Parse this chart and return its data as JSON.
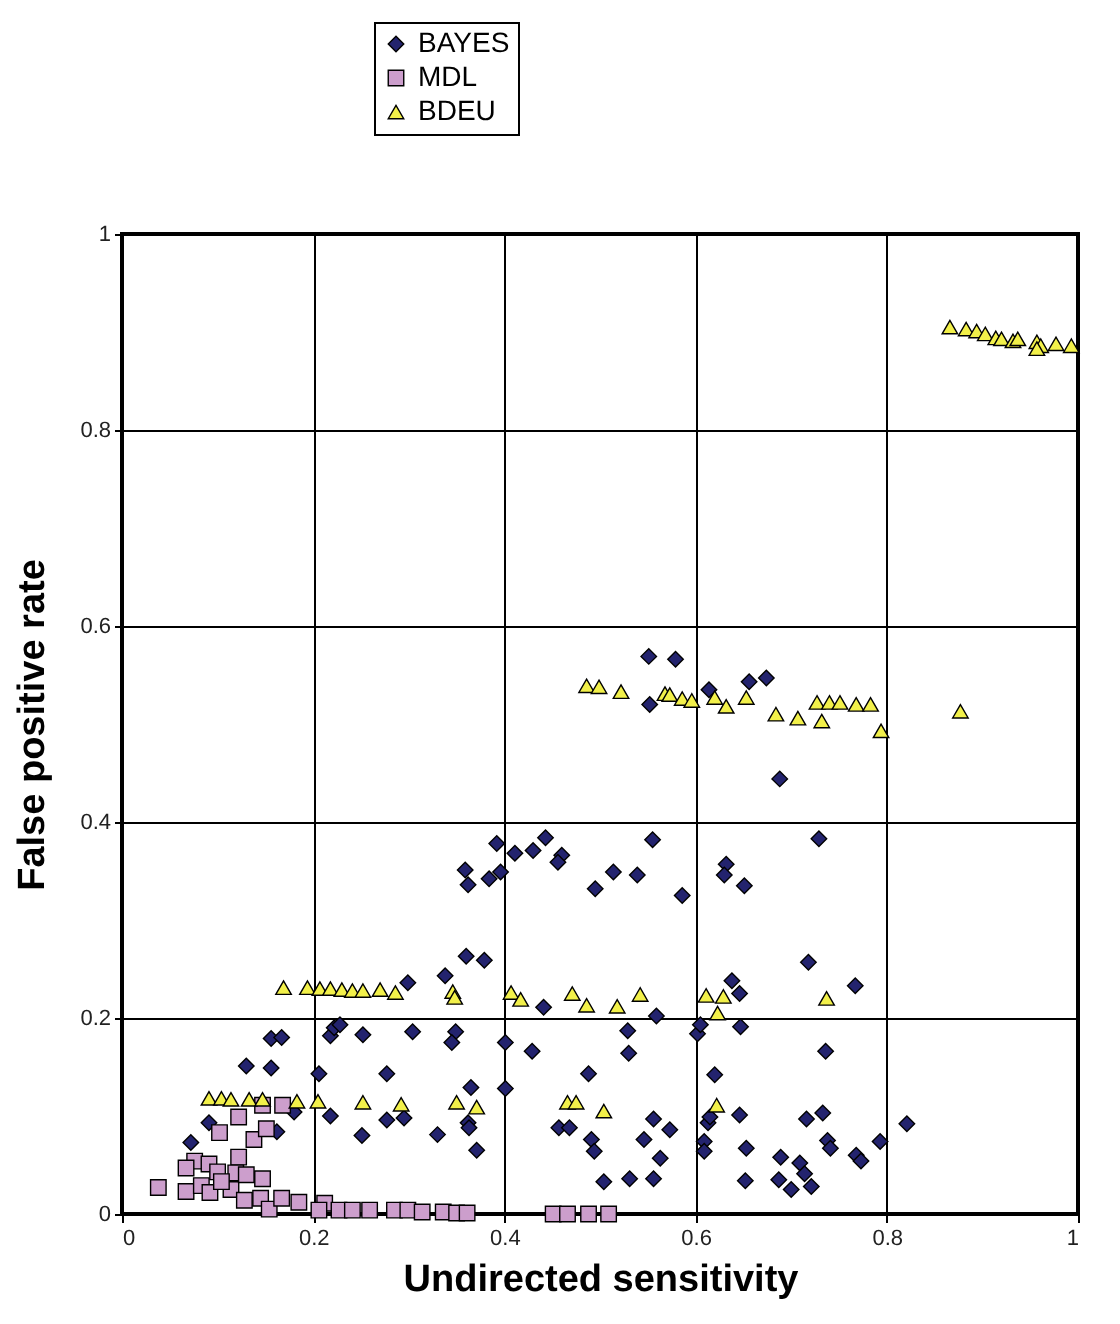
{
  "chart_data": {
    "type": "scatter",
    "xlabel": "Undirected sensitivity",
    "ylabel": "False positive rate",
    "xlim": [
      0,
      1
    ],
    "ylim": [
      0,
      1
    ],
    "xticks": [
      0,
      0.2,
      0.4,
      0.6,
      0.8,
      1
    ],
    "yticks": [
      0,
      0.2,
      0.4,
      0.6,
      0.8,
      1
    ],
    "grid": true,
    "legend": "top",
    "series": [
      {
        "name": "BAYES",
        "color": "#23236e",
        "marker": "diamond",
        "x": [
          0.551,
          0.579,
          0.552,
          0.614,
          0.656,
          0.674,
          0.688,
          0.392,
          0.411,
          0.43,
          0.443,
          0.46,
          0.456,
          0.359,
          0.362,
          0.384,
          0.396,
          0.514,
          0.539,
          0.495,
          0.555,
          0.586,
          0.632,
          0.63,
          0.651,
          0.729,
          0.338,
          0.36,
          0.379,
          0.299,
          0.441,
          0.559,
          0.638,
          0.646,
          0.718,
          0.767,
          0.156,
          0.167,
          0.13,
          0.156,
          0.206,
          0.218,
          0.222,
          0.228,
          0.252,
          0.277,
          0.304,
          0.349,
          0.345,
          0.401,
          0.429,
          0.488,
          0.529,
          0.53,
          0.602,
          0.605,
          0.647,
          0.62,
          0.736,
          0.072,
          0.091,
          0.162,
          0.18,
          0.218,
          0.251,
          0.277,
          0.295,
          0.33,
          0.365,
          0.362,
          0.363,
          0.371,
          0.401,
          0.457,
          0.468,
          0.491,
          0.494,
          0.504,
          0.531,
          0.556,
          0.546,
          0.563,
          0.573,
          0.556,
          0.609,
          0.609,
          0.613,
          0.615,
          0.646,
          0.653,
          0.652,
          0.689,
          0.687,
          0.7,
          0.709,
          0.714,
          0.721,
          0.716,
          0.733,
          0.738,
          0.741,
          0.768,
          0.773,
          0.793,
          0.821
        ],
        "values": [
          0.569,
          0.566,
          0.52,
          0.535,
          0.543,
          0.547,
          0.444,
          0.378,
          0.368,
          0.371,
          0.384,
          0.366,
          0.359,
          0.351,
          0.336,
          0.342,
          0.349,
          0.349,
          0.346,
          0.332,
          0.382,
          0.325,
          0.357,
          0.346,
          0.335,
          0.383,
          0.243,
          0.263,
          0.259,
          0.236,
          0.211,
          0.202,
          0.238,
          0.225,
          0.257,
          0.233,
          0.179,
          0.18,
          0.151,
          0.149,
          0.143,
          0.182,
          0.19,
          0.193,
          0.183,
          0.143,
          0.186,
          0.186,
          0.175,
          0.175,
          0.166,
          0.143,
          0.187,
          0.164,
          0.184,
          0.193,
          0.191,
          0.142,
          0.166,
          0.073,
          0.093,
          0.084,
          0.104,
          0.1,
          0.08,
          0.096,
          0.098,
          0.081,
          0.129,
          0.093,
          0.088,
          0.065,
          0.128,
          0.088,
          0.088,
          0.076,
          0.064,
          0.033,
          0.036,
          0.097,
          0.076,
          0.057,
          0.086,
          0.036,
          0.074,
          0.064,
          0.093,
          0.099,
          0.101,
          0.067,
          0.034,
          0.058,
          0.035,
          0.025,
          0.052,
          0.041,
          0.028,
          0.097,
          0.103,
          0.075,
          0.067,
          0.06,
          0.054,
          0.074,
          0.092
        ]
      },
      {
        "name": "MDL",
        "color": "#cc9ecc",
        "marker": "square",
        "x": [
          0.038,
          0.067,
          0.076,
          0.067,
          0.091,
          0.083,
          0.092,
          0.102,
          0.1,
          0.122,
          0.122,
          0.119,
          0.138,
          0.151,
          0.147,
          0.145,
          0.154,
          0.167,
          0.168,
          0.147,
          0.185,
          0.212,
          0.206,
          0.227,
          0.241,
          0.259,
          0.285,
          0.299,
          0.314,
          0.336,
          0.35,
          0.361,
          0.451,
          0.466,
          0.488,
          0.509,
          0.114,
          0.104,
          0.13,
          0.128
        ],
        "values": [
          0.027,
          0.023,
          0.054,
          0.047,
          0.051,
          0.029,
          0.022,
          0.083,
          0.043,
          0.099,
          0.058,
          0.042,
          0.076,
          0.087,
          0.036,
          0.016,
          0.005,
          0.016,
          0.111,
          0.111,
          0.012,
          0.011,
          0.004,
          0.004,
          0.004,
          0.004,
          0.004,
          0.004,
          0.002,
          0.002,
          0.001,
          0.001,
          0,
          0,
          0,
          0,
          0.025,
          0.033,
          0.04,
          0.014
        ]
      },
      {
        "name": "BDEU",
        "color": "#f2f04a",
        "marker": "triangle",
        "x": [
          0.866,
          0.883,
          0.894,
          0.903,
          0.914,
          0.92,
          0.932,
          0.937,
          0.957,
          0.961,
          0.957,
          0.977,
          0.993,
          0.486,
          0.499,
          0.522,
          0.568,
          0.573,
          0.586,
          0.596,
          0.62,
          0.632,
          0.653,
          0.684,
          0.707,
          0.727,
          0.732,
          0.74,
          0.751,
          0.768,
          0.783,
          0.794,
          0.877,
          0.169,
          0.194,
          0.207,
          0.218,
          0.23,
          0.241,
          0.252,
          0.27,
          0.286,
          0.346,
          0.348,
          0.407,
          0.417,
          0.471,
          0.486,
          0.518,
          0.542,
          0.611,
          0.629,
          0.623,
          0.737,
          0.091,
          0.104,
          0.114,
          0.133,
          0.147,
          0.183,
          0.205,
          0.252,
          0.292,
          0.35,
          0.371,
          0.466,
          0.475,
          0.504,
          0.622
        ],
        "values": [
          0.905,
          0.903,
          0.901,
          0.898,
          0.894,
          0.893,
          0.891,
          0.893,
          0.89,
          0.886,
          0.883,
          0.888,
          0.886,
          0.539,
          0.538,
          0.533,
          0.531,
          0.53,
          0.526,
          0.524,
          0.527,
          0.518,
          0.527,
          0.51,
          0.506,
          0.522,
          0.503,
          0.522,
          0.522,
          0.52,
          0.52,
          0.493,
          0.513,
          0.231,
          0.231,
          0.23,
          0.23,
          0.229,
          0.228,
          0.228,
          0.229,
          0.226,
          0.227,
          0.221,
          0.226,
          0.219,
          0.225,
          0.213,
          0.212,
          0.224,
          0.223,
          0.222,
          0.205,
          0.22,
          0.118,
          0.118,
          0.117,
          0.117,
          0.117,
          0.115,
          0.115,
          0.114,
          0.112,
          0.114,
          0.109,
          0.114,
          0.114,
          0.105,
          0.111
        ]
      }
    ]
  }
}
